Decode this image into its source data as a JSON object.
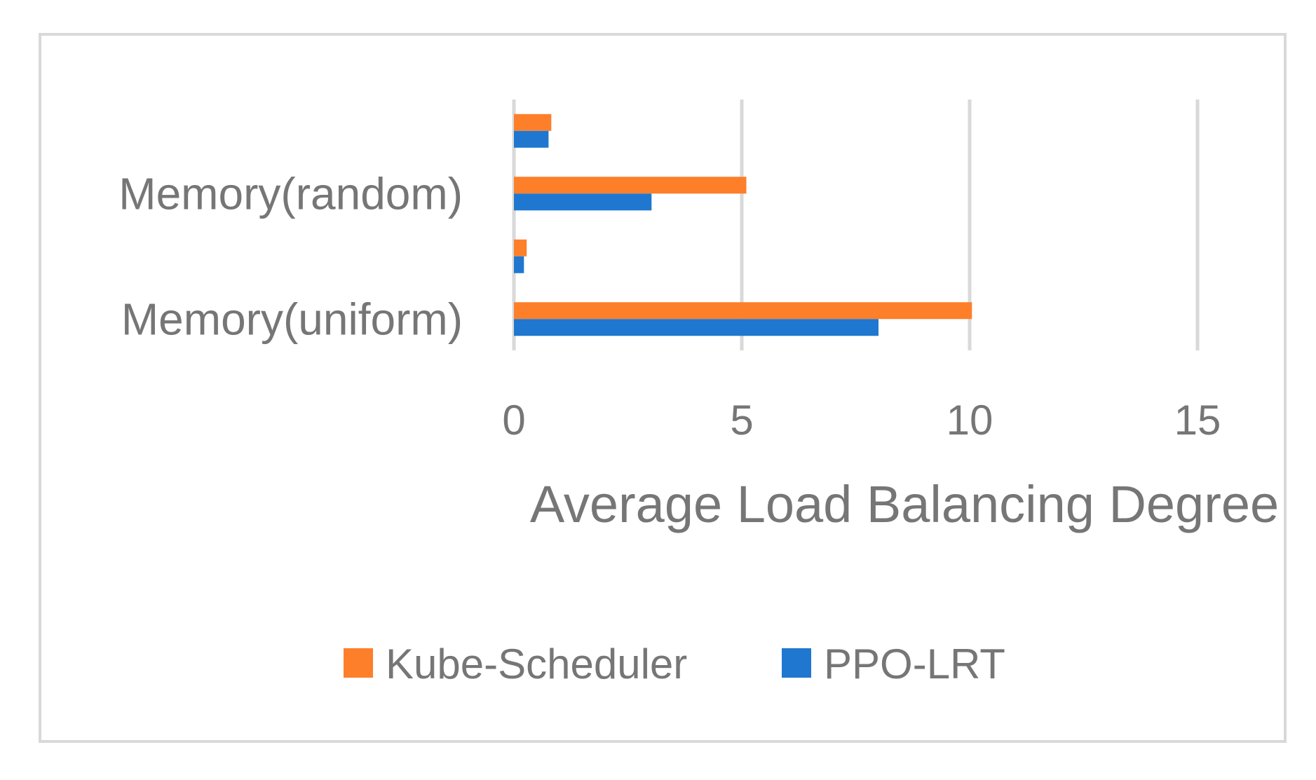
{
  "chart_data": {
    "type": "bar",
    "orientation": "horizontal",
    "title": "",
    "xlabel": "Average Load Balancing Degree",
    "ylabel": "",
    "xlim": [
      0,
      15
    ],
    "xticks": [
      "0",
      "5",
      "10",
      "15"
    ],
    "grid": true,
    "legend_position": "bottom",
    "categories": [
      "Memory(uniform)",
      "",
      "Memory(random)",
      ""
    ],
    "series": [
      {
        "name": "PPO-LRT",
        "color": "#1f77d0",
        "values": [
          8.0,
          0.22,
          3.02,
          0.76
        ]
      },
      {
        "name": "Kube-Scheduler",
        "color": "#fd7f2a",
        "values": [
          10.05,
          0.28,
          5.1,
          0.82
        ]
      }
    ],
    "legend_order": [
      "Kube-Scheduler",
      "PPO-LRT"
    ]
  }
}
